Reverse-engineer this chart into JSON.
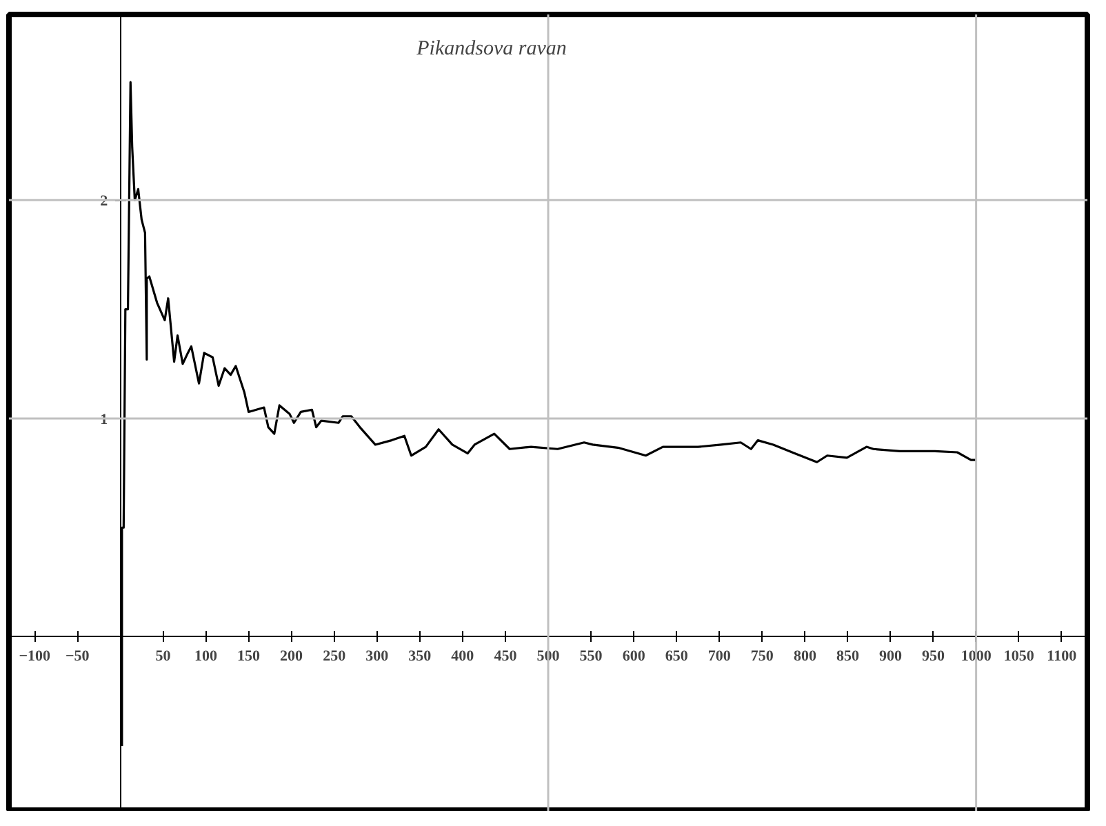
{
  "chart_data": {
    "type": "line",
    "title": "Pikandsova ravan",
    "x": [
      2,
      2,
      4,
      6,
      9,
      12,
      14,
      17,
      21,
      25,
      29,
      31,
      31,
      34,
      43,
      52,
      56,
      63,
      67,
      73,
      79,
      83,
      92,
      98,
      108,
      115,
      122,
      129,
      135,
      140,
      145,
      150,
      168,
      173,
      180,
      186,
      198,
      203,
      211,
      224,
      229,
      235,
      255,
      260,
      270,
      280,
      298,
      317,
      332,
      340,
      357,
      372,
      388,
      406,
      414,
      437,
      455,
      480,
      511,
      542,
      552,
      583,
      614,
      634,
      675,
      702,
      725,
      737,
      745,
      763,
      788,
      814,
      826,
      849,
      872,
      880,
      911,
      952,
      978,
      994,
      1000
    ],
    "series": [
      {
        "color": "#000000",
        "values": [
          -0.5,
          0.5,
          0.5,
          1.5,
          1.5,
          2.54,
          2.24,
          2.0,
          2.05,
          1.91,
          1.85,
          1.27,
          1.64,
          1.65,
          1.53,
          1.45,
          1.55,
          1.26,
          1.38,
          1.25,
          1.3,
          1.33,
          1.16,
          1.3,
          1.28,
          1.15,
          1.23,
          1.2,
          1.24,
          1.18,
          1.12,
          1.03,
          1.05,
          0.96,
          0.93,
          1.06,
          1.02,
          0.98,
          1.03,
          1.04,
          0.96,
          0.99,
          0.98,
          1.01,
          1.01,
          0.96,
          0.88,
          0.9,
          0.92,
          0.83,
          0.87,
          0.95,
          0.88,
          0.84,
          0.88,
          0.93,
          0.86,
          0.87,
          0.86,
          0.89,
          0.88,
          0.865,
          0.83,
          0.87,
          0.87,
          0.88,
          0.89,
          0.86,
          0.9,
          0.88,
          0.84,
          0.8,
          0.83,
          0.82,
          0.87,
          0.86,
          0.85,
          0.85,
          0.845,
          0.81,
          0.81
        ]
      }
    ],
    "xlim": [
      -130,
      1130
    ],
    "ylim": [
      -0.8,
      2.85
    ],
    "xticks": [
      -100,
      -50,
      50,
      100,
      150,
      200,
      250,
      300,
      350,
      400,
      450,
      500,
      550,
      600,
      650,
      700,
      750,
      800,
      850,
      900,
      950,
      1000,
      1050,
      1100
    ],
    "yticks": [
      1,
      2
    ],
    "ref_lines": [
      {
        "axis": "x",
        "value": 500,
        "color": "#c0c0c0"
      },
      {
        "axis": "x",
        "value": 1000,
        "color": "#c0c0c0"
      },
      {
        "axis": "y",
        "value": 1,
        "color": "#c0c0c0"
      },
      {
        "axis": "y",
        "value": 2,
        "color": "#c0c0c0"
      }
    ],
    "line_style": "solid",
    "marker": "none"
  }
}
